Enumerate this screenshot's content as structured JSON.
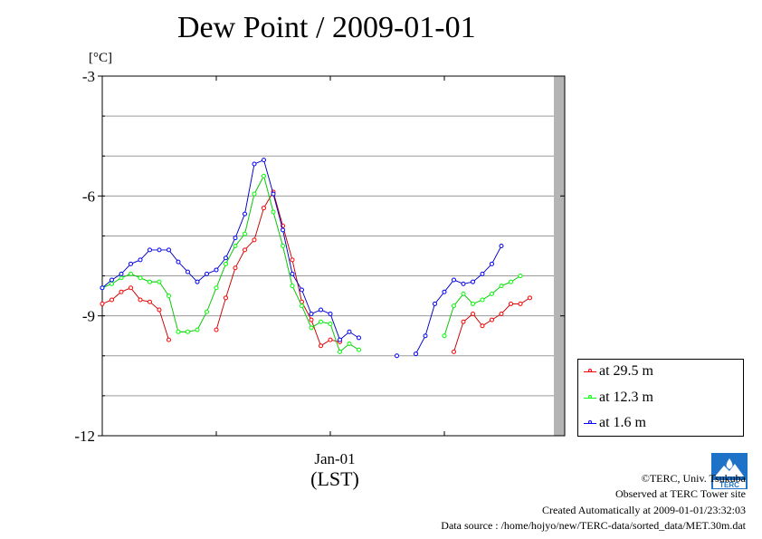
{
  "title": "Dew Point / 2009-01-01",
  "unit_label": "[°C]",
  "chart_data": {
    "type": "line",
    "title": "Dew Point / 2009-01-01",
    "ylabel": "[°C]",
    "xlabel": "(LST)",
    "x_tick_labels": [
      "Jan-01"
    ],
    "y_tick_labels": [
      "-3",
      "-6",
      "-9",
      "-12"
    ],
    "ylim": [
      -12,
      -3
    ],
    "x_unit": "hour of day (LST), 30-min steps",
    "grid": true,
    "legend_position": "lower-right, outside plot area",
    "x": [
      0.0,
      0.5,
      1.0,
      1.5,
      2.0,
      2.5,
      3.0,
      3.5,
      4.0,
      4.5,
      5.0,
      5.5,
      6.0,
      6.5,
      7.0,
      7.5,
      8.0,
      8.5,
      9.0,
      9.5,
      10.0,
      10.5,
      11.0,
      11.5,
      12.0,
      12.5,
      13.0,
      13.5,
      14.0,
      14.5,
      15.0,
      15.5,
      16.0,
      16.5,
      17.0,
      17.5,
      18.0,
      18.5,
      19.0,
      19.5,
      20.0,
      20.5,
      21.0,
      21.5,
      22.0,
      22.5,
      23.0,
      23.5
    ],
    "series": [
      {
        "name": "at 29.5 m",
        "color": "#ff0000",
        "values": [
          -8.7,
          -8.6,
          -8.4,
          -8.3,
          -8.6,
          -8.65,
          -8.85,
          -9.6,
          null,
          null,
          null,
          null,
          -9.35,
          -8.55,
          -7.8,
          -7.35,
          -7.1,
          -6.3,
          -5.9,
          -6.75,
          -7.6,
          -8.65,
          -9.1,
          -9.75,
          -9.6,
          -9.65,
          null,
          null,
          null,
          null,
          null,
          null,
          null,
          null,
          null,
          null,
          null,
          -9.9,
          -9.15,
          -8.95,
          -9.25,
          -9.1,
          -8.95,
          -8.7,
          -8.7,
          -8.55,
          null,
          null
        ]
      },
      {
        "name": "at 12.3 m",
        "color": "#00ff00",
        "values": [
          -8.3,
          -8.2,
          -8.05,
          -7.95,
          -8.05,
          -8.15,
          -8.15,
          -8.5,
          -9.4,
          -9.4,
          -9.35,
          -8.9,
          -8.3,
          -7.7,
          -7.25,
          -6.95,
          -5.95,
          -5.5,
          -6.4,
          -7.25,
          -8.25,
          -8.75,
          -9.3,
          -9.15,
          -9.2,
          -9.9,
          -9.7,
          -9.85,
          null,
          null,
          null,
          null,
          null,
          null,
          null,
          null,
          -9.5,
          -8.75,
          -8.45,
          -8.7,
          -8.6,
          -8.45,
          -8.25,
          -8.15,
          -8.0,
          null,
          null,
          null
        ]
      },
      {
        "name": "at 1.6 m",
        "color": "#0000ff",
        "values": [
          -8.3,
          -8.1,
          -7.95,
          -7.7,
          -7.6,
          -7.35,
          -7.35,
          -7.35,
          -7.65,
          -7.9,
          -8.15,
          -7.95,
          -7.85,
          -7.55,
          -7.05,
          -6.45,
          -5.2,
          -5.1,
          -5.95,
          -6.85,
          -7.95,
          -8.35,
          -8.95,
          -8.85,
          -8.95,
          -9.6,
          -9.4,
          -9.55,
          null,
          null,
          null,
          -10.0,
          null,
          -9.95,
          -9.5,
          -8.7,
          -8.4,
          -8.1,
          -8.2,
          -8.15,
          -7.95,
          -7.7,
          -7.25,
          null,
          null,
          null,
          null,
          null
        ]
      }
    ]
  },
  "legend": [
    {
      "label": "at 29.5 m",
      "color": "#ff0000"
    },
    {
      "label": "at 12.3 m",
      "color": "#00ff00"
    },
    {
      "label": "at 1.6 m",
      "color": "#0000ff"
    }
  ],
  "footer": {
    "copyright": "©TERC, Univ. Tsukuba",
    "observed": "Observed at TERC Tower site",
    "created": "Created Automatically at 2009-01-01/23:32:03",
    "source": "Data source : /home/hojyo/new/TERC-data/sorted_data/MET.30m.dat"
  },
  "logo_text": "TERC"
}
